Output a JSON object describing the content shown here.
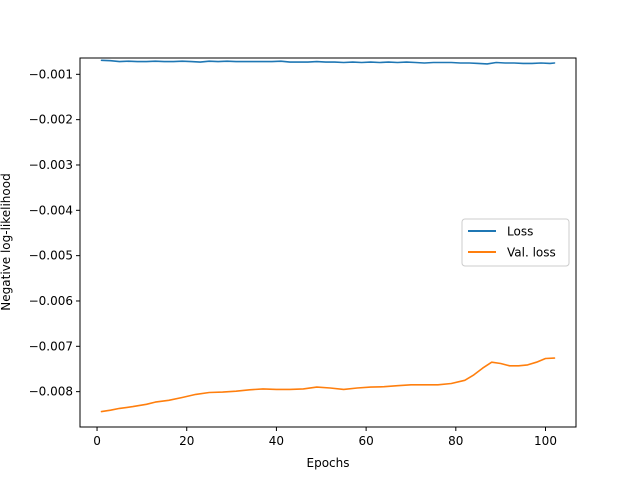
{
  "chart_data": {
    "type": "line",
    "title": "",
    "xlabel": "Epochs",
    "ylabel": "Negative log-likelihood",
    "xlim": [
      -3.8,
      106.8
    ],
    "ylim": [
      -0.00878,
      -0.00064
    ],
    "xticks": [
      0,
      20,
      40,
      60,
      80,
      100
    ],
    "xtick_labels": [
      "0",
      "20",
      "40",
      "60",
      "80",
      "100"
    ],
    "yticks": [
      -0.001,
      -0.002,
      -0.003,
      -0.004,
      -0.005,
      -0.006,
      -0.007,
      -0.008
    ],
    "ytick_labels": [
      "−0.001",
      "−0.002",
      "−0.003",
      "−0.004",
      "−0.005",
      "−0.006",
      "−0.007",
      "−0.008"
    ],
    "grid": false,
    "legend_position": "center-right",
    "series": [
      {
        "name": "Loss",
        "color": "#1f77b4",
        "x": [
          1,
          3,
          5,
          7,
          9,
          11,
          13,
          15,
          17,
          19,
          21,
          23,
          25,
          27,
          29,
          31,
          33,
          35,
          37,
          39,
          41,
          43,
          45,
          47,
          49,
          51,
          53,
          55,
          57,
          59,
          61,
          63,
          65,
          67,
          69,
          71,
          73,
          75,
          77,
          79,
          81,
          83,
          85,
          87,
          89,
          91,
          93,
          95,
          97,
          99,
          101,
          102
        ],
        "y": [
          -0.00069,
          -0.0007,
          -0.00072,
          -0.00071,
          -0.00072,
          -0.00072,
          -0.00071,
          -0.00072,
          -0.00072,
          -0.00071,
          -0.00072,
          -0.00073,
          -0.00071,
          -0.00072,
          -0.00071,
          -0.00072,
          -0.00072,
          -0.00072,
          -0.00072,
          -0.00072,
          -0.00071,
          -0.00073,
          -0.00073,
          -0.00073,
          -0.00072,
          -0.00073,
          -0.00073,
          -0.00074,
          -0.00073,
          -0.00074,
          -0.00073,
          -0.00074,
          -0.00073,
          -0.00074,
          -0.00073,
          -0.00074,
          -0.00075,
          -0.00074,
          -0.00074,
          -0.00074,
          -0.00075,
          -0.00075,
          -0.00076,
          -0.00077,
          -0.00074,
          -0.00075,
          -0.00075,
          -0.00076,
          -0.00076,
          -0.00075,
          -0.00076,
          -0.00075
        ]
      },
      {
        "name": "Val. loss",
        "color": "#ff7f0e",
        "x": [
          1,
          3,
          5,
          8,
          11,
          13,
          16,
          19,
          22,
          25,
          28,
          31,
          34,
          37,
          40,
          43,
          46,
          49,
          52,
          55,
          58,
          61,
          64,
          67,
          70,
          73,
          76,
          79,
          82,
          84,
          86,
          88,
          90,
          92,
          94,
          96,
          98,
          100,
          102
        ],
        "y": [
          -0.00844,
          -0.00841,
          -0.00837,
          -0.00833,
          -0.00828,
          -0.00823,
          -0.00819,
          -0.00813,
          -0.00806,
          -0.00802,
          -0.00801,
          -0.00799,
          -0.00796,
          -0.00794,
          -0.00795,
          -0.00795,
          -0.00794,
          -0.0079,
          -0.00792,
          -0.00795,
          -0.00792,
          -0.0079,
          -0.00789,
          -0.00787,
          -0.00785,
          -0.00785,
          -0.00785,
          -0.00782,
          -0.00775,
          -0.00763,
          -0.00748,
          -0.00735,
          -0.00738,
          -0.00743,
          -0.00743,
          -0.00741,
          -0.00735,
          -0.00727,
          -0.00726
        ]
      }
    ]
  }
}
